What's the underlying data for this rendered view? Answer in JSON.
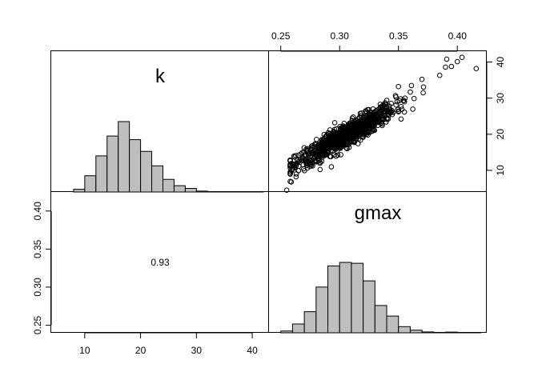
{
  "chart_data": {
    "type": "pairs",
    "variables": [
      "k",
      "gmax"
    ],
    "correlation_label": "0.93",
    "k_axis": {
      "lim": [
        4,
        43
      ],
      "ticks": [
        10,
        20,
        30,
        40
      ],
      "tick_labels": [
        "10",
        "20",
        "30",
        "40"
      ]
    },
    "gmax_axis": {
      "lim": [
        0.24,
        0.425
      ],
      "ticks": [
        0.25,
        0.3,
        0.35,
        0.4
      ],
      "tick_labels": [
        "0.25",
        "0.30",
        "0.35",
        "0.40"
      ]
    },
    "k_histogram": {
      "breaks": [
        8,
        10,
        12,
        14,
        16,
        18,
        20,
        22,
        24,
        26,
        28,
        30,
        32,
        34,
        36,
        38,
        40,
        42
      ],
      "counts": [
        3,
        18,
        40,
        62,
        78,
        58,
        45,
        29,
        14,
        7,
        4,
        1,
        0.4,
        0.2,
        0.1,
        0.2,
        0.1
      ]
    },
    "gmax_histogram": {
      "breaks": [
        0.25,
        0.26,
        0.27,
        0.28,
        0.29,
        0.3,
        0.31,
        0.32,
        0.33,
        0.34,
        0.35,
        0.36,
        0.37,
        0.38,
        0.39,
        0.4,
        0.41,
        0.42
      ],
      "counts": [
        2,
        10,
        24,
        52,
        76,
        80,
        79,
        59,
        31,
        19,
        7,
        3,
        1,
        0.5,
        0.8,
        0.3,
        0.2
      ]
    },
    "scatter": {
      "x_var": "gmax",
      "y_var": "k",
      "n_points": 1000,
      "slope": 183.7,
      "intercept": -36.4,
      "residual_sd": 1.6,
      "center": [
        0.305,
        19.6
      ],
      "x_sd": 0.021,
      "outliers": [
        {
          "x": 0.255,
          "y": 4.5
        },
        {
          "x": 0.259,
          "y": 6.8
        },
        {
          "x": 0.263,
          "y": 8.2
        },
        {
          "x": 0.361,
          "y": 33.5
        },
        {
          "x": 0.37,
          "y": 35.2
        },
        {
          "x": 0.371,
          "y": 31.5
        },
        {
          "x": 0.385,
          "y": 36.3
        },
        {
          "x": 0.39,
          "y": 38.6
        },
        {
          "x": 0.391,
          "y": 40.8
        },
        {
          "x": 0.395,
          "y": 38.8
        },
        {
          "x": 0.4,
          "y": 40.1
        },
        {
          "x": 0.404,
          "y": 41.3
        },
        {
          "x": 0.416,
          "y": 38.2
        },
        {
          "x": 0.35,
          "y": 33.2
        }
      ]
    },
    "grid": false,
    "legend": "none"
  }
}
